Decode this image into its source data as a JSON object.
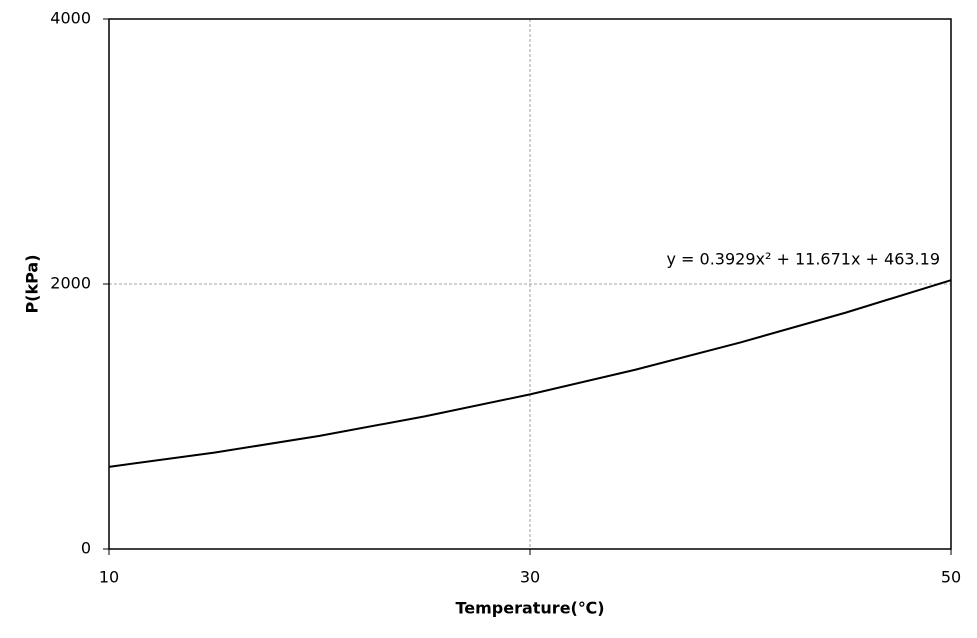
{
  "chart_data": {
    "type": "line",
    "x": [
      10,
      15,
      20,
      25,
      30,
      35,
      40,
      45,
      50
    ],
    "values": [
      620,
      727,
      854,
      1001,
      1167,
      1353,
      1559,
      1784,
      2029
    ],
    "color": "#000000",
    "xlim": [
      10,
      50
    ],
    "xticks": [
      10,
      30,
      50
    ],
    "ylim": [
      0,
      4000
    ],
    "yticks": [
      0,
      2000,
      4000
    ],
    "grid": true,
    "xlabel": "Temperature(℃)",
    "ylabel": "P(kPa)",
    "annotation": "y = 0.3929x² + 11.671x + 463.19"
  }
}
